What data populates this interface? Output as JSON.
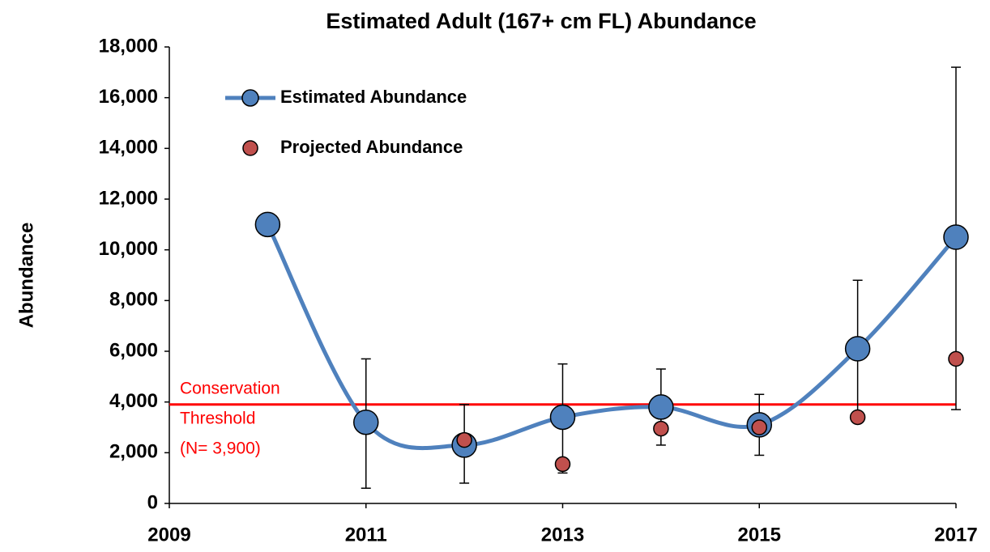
{
  "chart_data": {
    "type": "line",
    "title": "Estimated Adult (167+ cm FL) Abundance",
    "y_label": "Abundance",
    "x": [
      2010,
      2011,
      2012,
      2013,
      2014,
      2015,
      2016,
      2017
    ],
    "xlim": [
      2009,
      2017
    ],
    "xticks": [
      2009,
      2011,
      2013,
      2015,
      2017
    ],
    "ylim": [
      0,
      18000
    ],
    "yticks": [
      0,
      {
        "value": 2000,
        "label": "2,000"
      },
      {
        "value": 4000,
        "label": "4,000"
      },
      {
        "value": 6000,
        "label": "6,000"
      },
      {
        "value": 8000,
        "label": "8,000"
      },
      {
        "value": 10000,
        "label": "10,000"
      },
      {
        "value": 12000,
        "label": "12,000"
      },
      {
        "value": 14000,
        "label": "14,000"
      },
      {
        "value": 16000,
        "label": "16,000"
      },
      {
        "value": 18000,
        "label": "18,000"
      }
    ],
    "series": [
      {
        "name": "Estimated Abundance",
        "color": "#4f81bd",
        "smooth": true,
        "values": [
          11000,
          3200,
          2300,
          3400,
          3800,
          3100,
          6100,
          10500
        ],
        "lower": [
          null,
          600,
          800,
          1200,
          2300,
          1900,
          3400,
          3700
        ],
        "upper": [
          null,
          5700,
          3900,
          5500,
          5300,
          4300,
          8800,
          17200
        ]
      },
      {
        "name": "Projected Abundance",
        "color": "#c0504d",
        "markers_only": true,
        "values": [
          null,
          null,
          2500,
          1550,
          2950,
          3000,
          3400,
          5700
        ]
      }
    ],
    "threshold": {
      "value": 3900,
      "color": "#ff0000",
      "label": [
        "Conservation",
        "Threshold",
        "(N= 3,900)"
      ]
    },
    "legend": "upper-left"
  }
}
